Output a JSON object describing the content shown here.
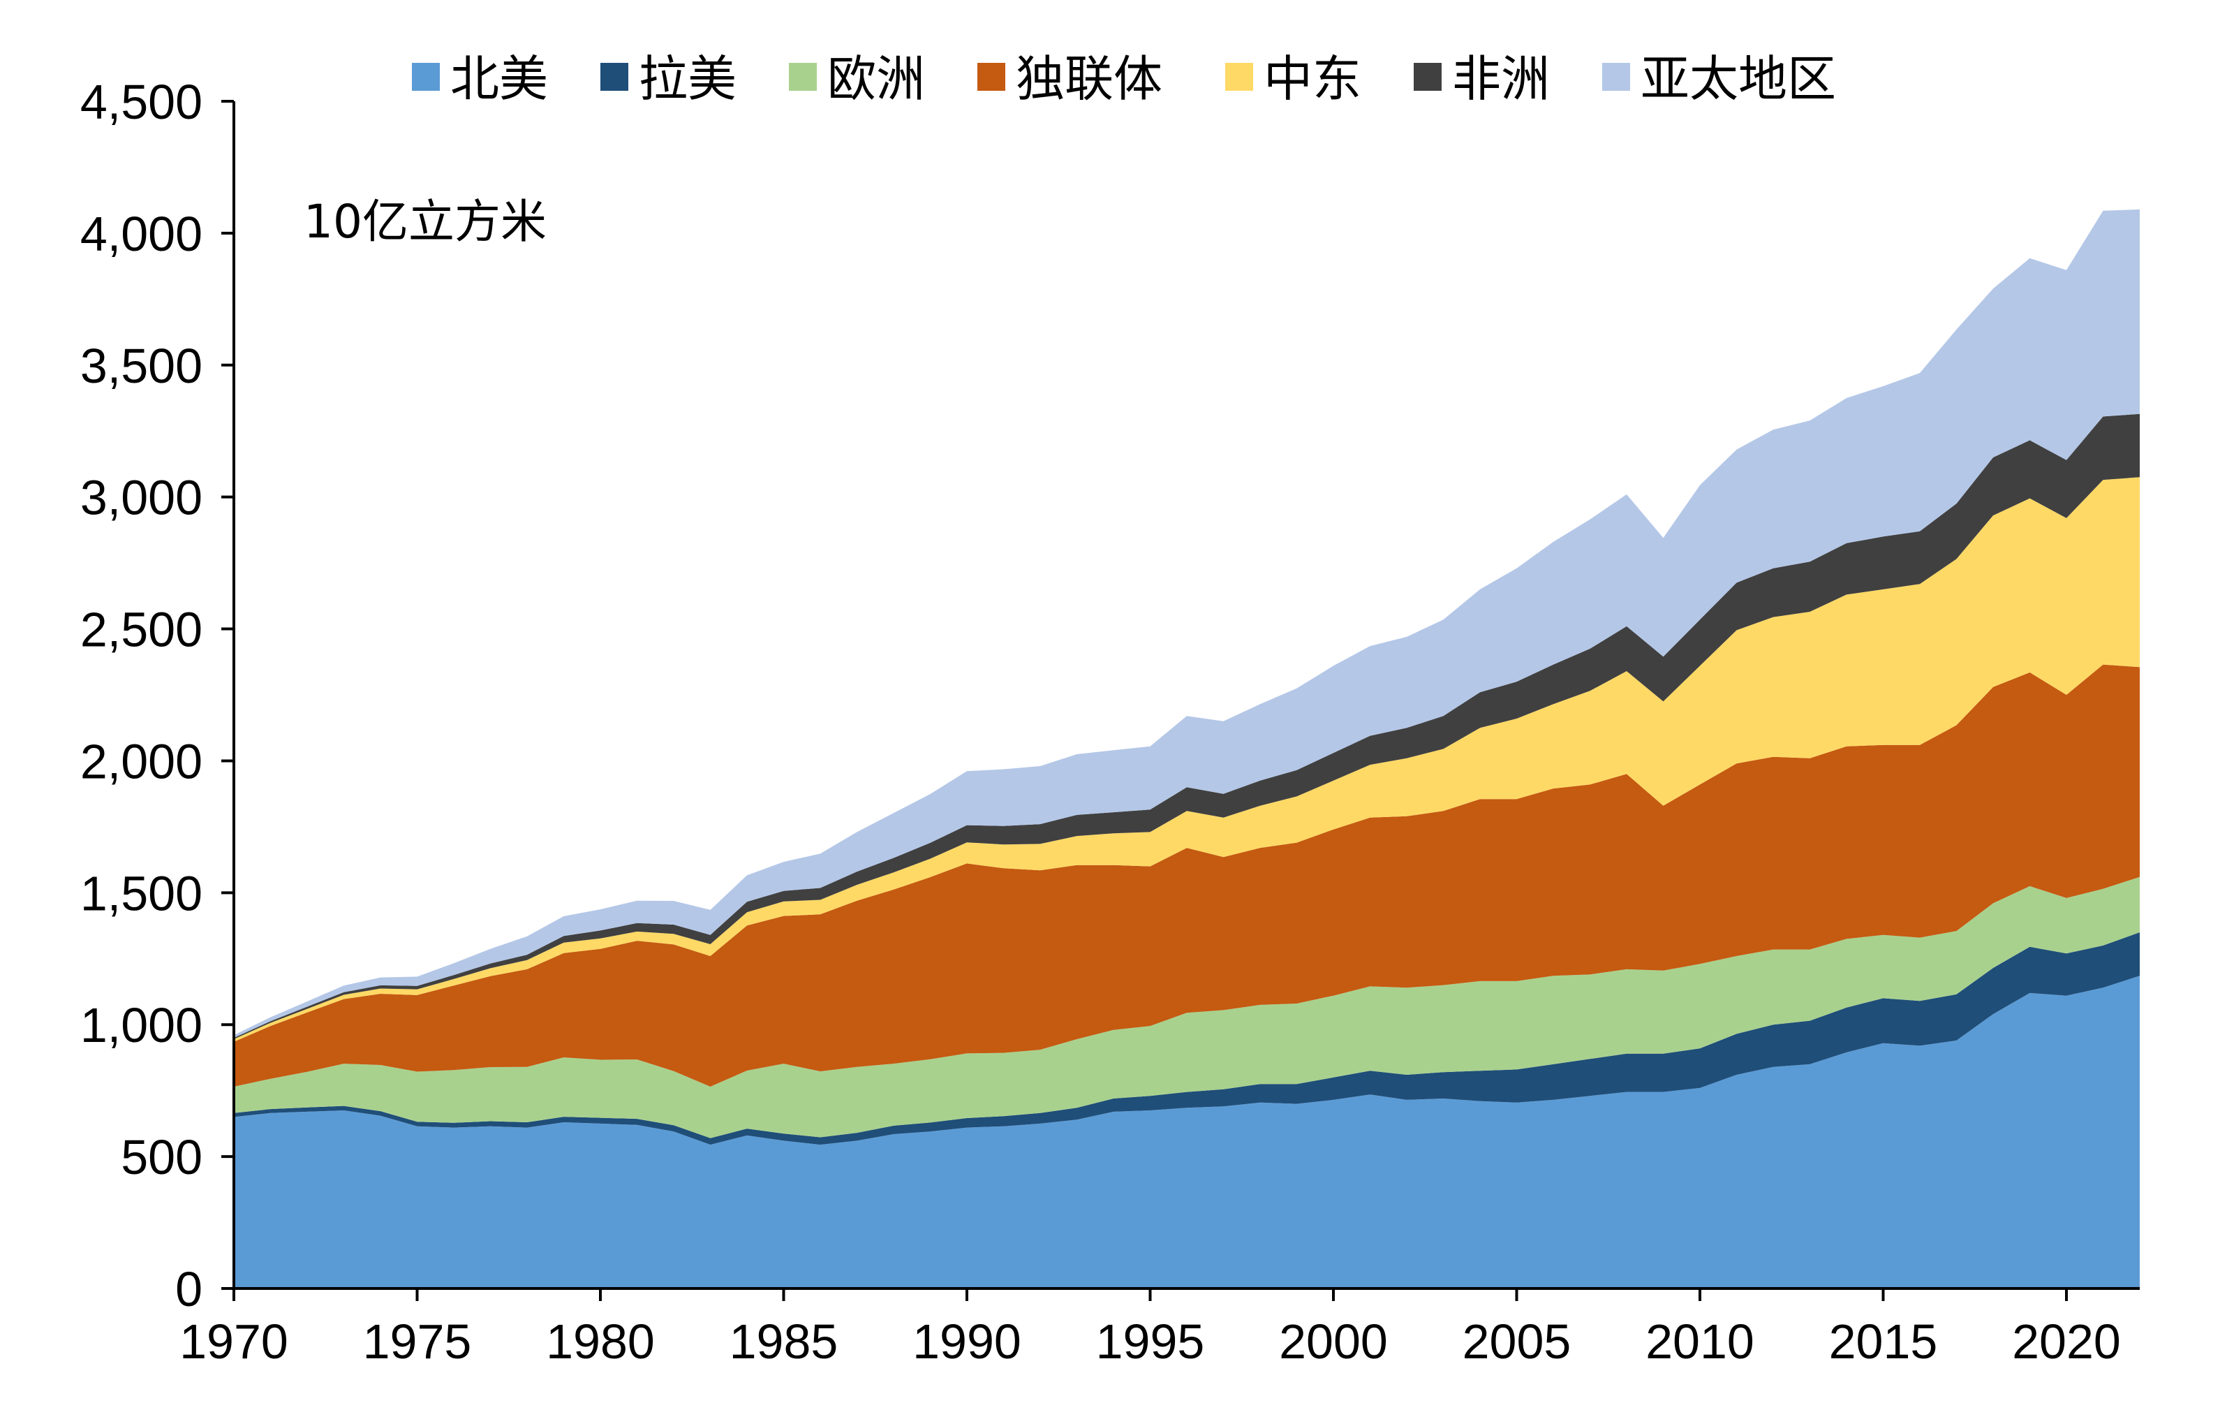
{
  "chart_data": {
    "type": "area",
    "stacked": true,
    "unit": "10亿立方米",
    "x": [
      1970,
      1971,
      1972,
      1973,
      1974,
      1975,
      1976,
      1977,
      1978,
      1979,
      1980,
      1981,
      1982,
      1983,
      1984,
      1985,
      1986,
      1987,
      1988,
      1989,
      1990,
      1991,
      1992,
      1993,
      1994,
      1995,
      1996,
      1997,
      1998,
      1999,
      2000,
      2001,
      2002,
      2003,
      2004,
      2005,
      2006,
      2007,
      2008,
      2009,
      2010,
      2011,
      2012,
      2013,
      2014,
      2015,
      2016,
      2017,
      2018,
      2019,
      2020,
      2021,
      2022
    ],
    "xticks": [
      "1970",
      "1975",
      "1980",
      "1985",
      "1990",
      "1995",
      "2000",
      "2005",
      "2010",
      "2015",
      "2020"
    ],
    "ylim": [
      0,
      4500
    ],
    "yticks": [
      "0",
      "500",
      "1,000",
      "1,500",
      "2,000",
      "2,500",
      "3,000",
      "3,500",
      "4,000",
      "4,500"
    ],
    "series": [
      {
        "name": "北美",
        "color": "#5B9BD5",
        "values": [
          650,
          665,
          670,
          675,
          655,
          615,
          610,
          615,
          610,
          630,
          625,
          620,
          595,
          545,
          580,
          560,
          545,
          560,
          585,
          595,
          610,
          615,
          625,
          640,
          670,
          675,
          685,
          690,
          705,
          700,
          715,
          735,
          715,
          720,
          710,
          705,
          715,
          730,
          745,
          745,
          760,
          810,
          840,
          850,
          895,
          930,
          920,
          940,
          1040,
          1120,
          1110,
          1140,
          1185
        ]
      },
      {
        "name": "拉美",
        "color": "#1F4E79",
        "values": [
          15,
          15,
          16,
          17,
          17,
          17,
          18,
          19,
          20,
          21,
          22,
          23,
          24,
          25,
          26,
          27,
          28,
          30,
          32,
          34,
          36,
          38,
          40,
          45,
          50,
          55,
          60,
          65,
          70,
          75,
          85,
          90,
          95,
          100,
          115,
          125,
          135,
          140,
          145,
          145,
          150,
          155,
          160,
          165,
          170,
          170,
          170,
          175,
          175,
          175,
          160,
          160,
          165
        ]
      },
      {
        "name": "欧洲",
        "color": "#A9D18E",
        "values": [
          100,
          115,
          135,
          160,
          175,
          190,
          200,
          205,
          210,
          225,
          220,
          225,
          205,
          195,
          220,
          265,
          250,
          250,
          235,
          240,
          245,
          240,
          240,
          260,
          260,
          265,
          300,
          300,
          300,
          305,
          310,
          320,
          330,
          330,
          340,
          335,
          335,
          320,
          320,
          315,
          320,
          295,
          285,
          270,
          260,
          240,
          240,
          240,
          245,
          230,
          210,
          215,
          210
        ]
      },
      {
        "name": "独联体",
        "color": "#C55A11",
        "values": [
          170,
          200,
          225,
          245,
          270,
          290,
          320,
          345,
          370,
          395,
          420,
          450,
          480,
          495,
          550,
          560,
          595,
          630,
          660,
          690,
          720,
          700,
          680,
          660,
          625,
          605,
          625,
          580,
          595,
          610,
          630,
          640,
          650,
          660,
          690,
          690,
          710,
          720,
          740,
          625,
          680,
          730,
          730,
          725,
          730,
          720,
          730,
          780,
          820,
          810,
          770,
          850,
          795
        ]
      },
      {
        "name": "中东",
        "color": "#FFD966",
        "values": [
          10,
          12,
          14,
          16,
          20,
          22,
          25,
          30,
          35,
          40,
          40,
          35,
          40,
          45,
          50,
          55,
          55,
          60,
          65,
          70,
          80,
          90,
          100,
          110,
          120,
          130,
          140,
          150,
          160,
          175,
          185,
          200,
          220,
          235,
          270,
          305,
          320,
          355,
          390,
          395,
          450,
          505,
          530,
          555,
          575,
          590,
          610,
          630,
          650,
          660,
          670,
          700,
          720
        ]
      },
      {
        "name": "非洲",
        "color": "#404040",
        "values": [
          5,
          6,
          8,
          10,
          12,
          13,
          15,
          18,
          20,
          25,
          30,
          32,
          35,
          35,
          40,
          40,
          45,
          50,
          55,
          60,
          65,
          70,
          75,
          80,
          80,
          85,
          90,
          90,
          95,
          100,
          105,
          110,
          115,
          125,
          135,
          140,
          150,
          160,
          170,
          170,
          175,
          180,
          185,
          190,
          195,
          200,
          200,
          210,
          220,
          220,
          220,
          240,
          240
        ]
      },
      {
        "name": "亚太地区",
        "color": "#B4C7E7",
        "values": [
          10,
          15,
          20,
          25,
          30,
          35,
          45,
          55,
          70,
          75,
          80,
          85,
          90,
          95,
          100,
          110,
          130,
          150,
          170,
          185,
          205,
          215,
          220,
          230,
          235,
          240,
          270,
          275,
          290,
          310,
          330,
          340,
          345,
          365,
          390,
          430,
          465,
          490,
          500,
          450,
          510,
          505,
          525,
          535,
          550,
          570,
          600,
          660,
          640,
          690,
          720,
          780,
          775
        ]
      }
    ]
  }
}
